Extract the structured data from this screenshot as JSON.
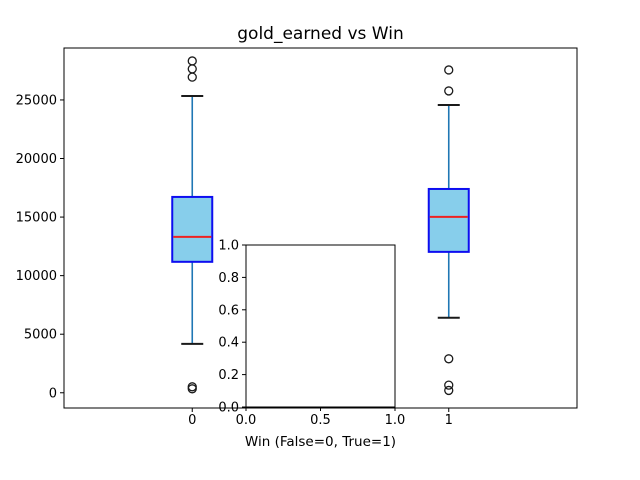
{
  "chart_data": {
    "type": "boxplot",
    "title": "gold_earned vs Win",
    "xlabel": "Win (False=0, True=1)",
    "ylabel": "",
    "categories": [
      "0",
      "1"
    ],
    "group_positions": [
      0,
      1
    ],
    "xlim": [
      -0.5,
      1.5
    ],
    "ylim": [
      -1300,
      29435
    ],
    "yticks": [
      0,
      5000,
      10000,
      15000,
      20000,
      25000
    ],
    "grid": false,
    "legend": "none",
    "groups": [
      {
        "label": "0",
        "whisker_low": 4180,
        "q1": 11180,
        "median": 13310,
        "q3": 16720,
        "whisker_high": 25340,
        "outliers_high": [
          28330,
          27650,
          26950
        ],
        "outliers_low": [
          510,
          340
        ]
      },
      {
        "label": "1",
        "whisker_low": 6400,
        "q1": 12030,
        "median": 15020,
        "q3": 17400,
        "whisker_high": 24570,
        "outliers_high": [
          27560,
          25770
        ],
        "outliers_low": [
          2900,
          650,
          200
        ]
      }
    ],
    "inset_axes": {
      "xticks": [
        "0.0",
        "0.5",
        "1.0"
      ],
      "yticks": [
        "0.0",
        "0.2",
        "0.4",
        "0.6",
        "0.8",
        "1.0"
      ],
      "xlim": [
        0,
        1
      ],
      "ylim": [
        0,
        1
      ],
      "content": "empty"
    },
    "colors": {
      "background": "#ffffff",
      "box_fill": "#87CEEB",
      "box_edge": "#0d0df0",
      "median": "#ee2222",
      "whisker": "#1f77b4",
      "cap": "#1a1a1a",
      "outlier": "#1a1a1a",
      "spine": "#000000",
      "text": "#000000"
    }
  }
}
